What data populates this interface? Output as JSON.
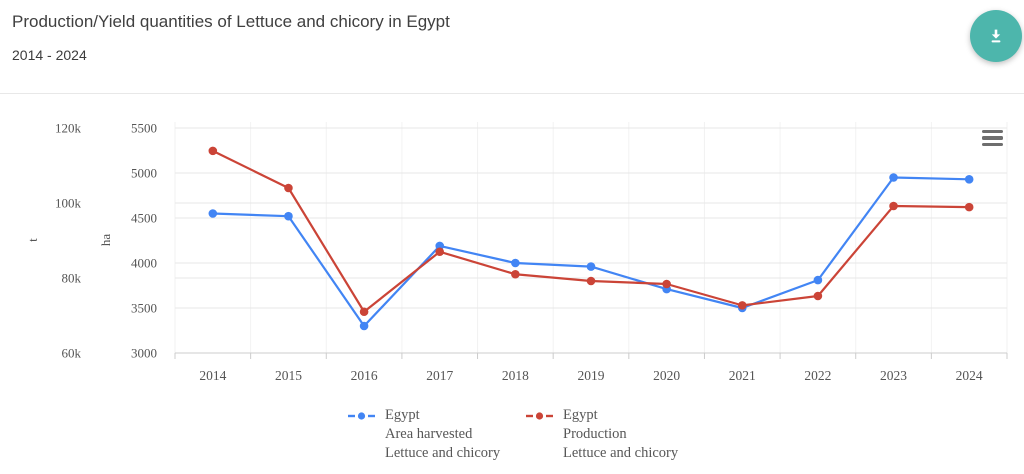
{
  "header": {
    "title": "Production/Yield quantities of Lettuce and chicory in Egypt",
    "subtitle": "2014 - 2024",
    "download_button": {
      "icon": "download-icon",
      "color": "#4db6ac"
    }
  },
  "chart": {
    "menu_icon": "hamburger-menu-icon",
    "background": "#ffffff",
    "gridline_color": "#e7e7e7",
    "axis_line_color": "#cccccc"
  },
  "chart_data": {
    "type": "line",
    "title": "Production/Yield quantities of Lettuce and chicory in Egypt",
    "subtitle": "2014 - 2024",
    "x_labels": [
      "2014",
      "2015",
      "2016",
      "2017",
      "2018",
      "2019",
      "2020",
      "2021",
      "2022",
      "2023",
      "2024"
    ],
    "grid": true,
    "legend_position": "bottom",
    "axes": {
      "t": {
        "unit": "t",
        "range": [
          60000,
          120000
        ],
        "ticks": [
          {
            "value": 120000,
            "label": "120k"
          },
          {
            "value": 100000,
            "label": "100k"
          },
          {
            "value": 80000,
            "label": "80k"
          },
          {
            "value": 60000,
            "label": "60k"
          }
        ]
      },
      "ha": {
        "unit": "ha",
        "range": [
          3000,
          5500
        ],
        "ticks": [
          {
            "value": 5500,
            "label": "5500"
          },
          {
            "value": 5000,
            "label": "5000"
          },
          {
            "value": 4500,
            "label": "4500"
          },
          {
            "value": 4000,
            "label": "4000"
          },
          {
            "value": 3500,
            "label": "3500"
          },
          {
            "value": 3000,
            "label": "3000"
          }
        ]
      }
    },
    "series": [
      {
        "name": "Egypt Area harvested Lettuce and chicory",
        "legend_lines": [
          "Egypt",
          "Area harvested",
          "Lettuce and chicory"
        ],
        "axis": "ha",
        "color": "#4285f4",
        "values": [
          4550,
          4520,
          3300,
          4190,
          4000,
          3960,
          3710,
          3500,
          3810,
          4950,
          4930
        ]
      },
      {
        "name": "Egypt Production Lettuce and chicory",
        "legend_lines": [
          "Egypt",
          "Production",
          "Lettuce and chicory"
        ],
        "axis": "t",
        "color": "#cb4437",
        "values": [
          113900,
          104000,
          71000,
          87000,
          81000,
          79200,
          78400,
          72700,
          75200,
          99200,
          98900
        ]
      }
    ]
  }
}
